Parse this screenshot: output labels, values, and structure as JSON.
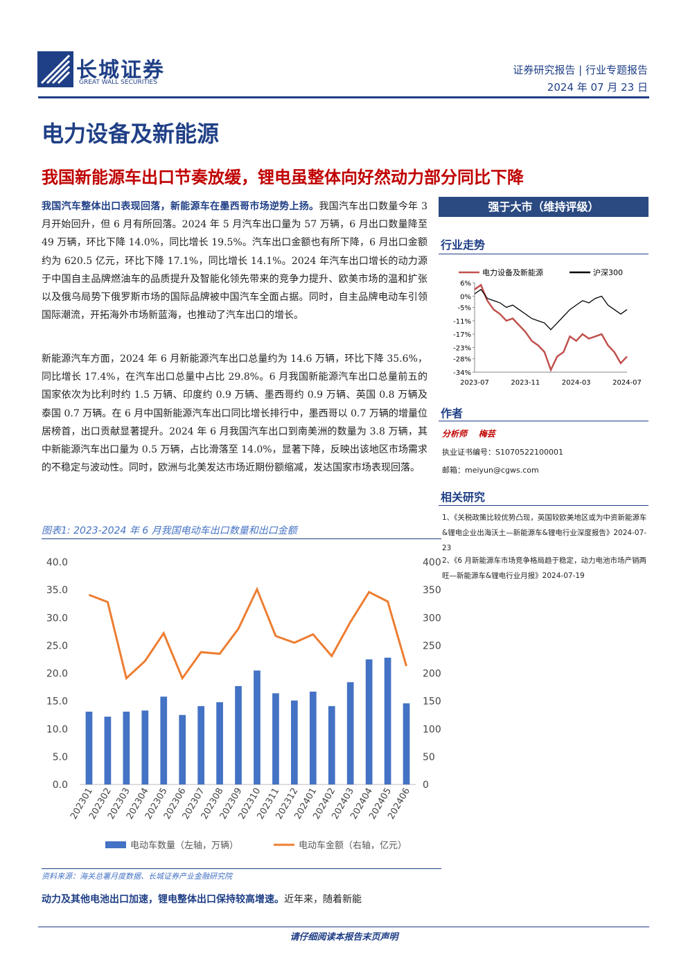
{
  "header": {
    "logo": "长城证券",
    "logo_en": "GREAT WALL SECURITIES",
    "report_type": "证券研究报告",
    "report_subtype": "行业专题报告",
    "date": "2024 年 07 月 23 日"
  },
  "sector": "电力设备及新能源",
  "headline": "我国新能源车出口节奏放缓，锂电虽整体向好然动力部分同比下降",
  "body": {
    "p1_lead": "我国汽车整体出口表现回落，新能源车在墨西哥市场逆势上扬。",
    "p1": "我国汽车出口数量今年 3 月开始回升，但 6 月有所回落。2024 年 5 月汽车出口量为 57 万辆，6 月出口数量降至 49 万辆，环比下降 14.0%，同比增长 19.5%。汽车出口金额也有所下降，6 月出口金额约为 620.5 亿元，环比下降 17.1%，同比增长 14.1%。2024 年汽车出口增长的动力源于中国自主品牌燃油车的品质提升及智能化领先带来的竞争力提升、欧美市场的温和扩张以及俄乌局势下俄罗斯市场的国际品牌被中国汽车全面占据。同时，自主品牌电动车引领国际潮流，开拓海外市场新蓝海，也推动了汽车出口的增长。",
    "p2": "新能源汽车方面，2024 年 6 月新能源汽车出口总量约为 14.6 万辆，环比下降 35.6%，同比增长 17.4%，在汽车出口总量中占比 29.8%。6 月我国新能源汽车出口总量前五的国家依次为比利时约 1.5 万辆、印度约 0.9 万辆、墨西哥约 0.9 万辆、英国 0.8 万辆及泰国 0.7 万辆。在 6 月中国新能源汽车出口同比增长排行中，墨西哥以 0.7 万辆的增量位居榜首，出口贡献显著提升。2024 年 6 月我国汽车出口到南美洲的数量为 3.8 万辆，其中新能源汽车出口量为 0.5 万辆，占比滑落至 14.0%，显著下降，反映出该地区市场需求的不稳定与波动性。同时，欧洲与北美发达市场近期份额缩减，发达国家市场表现回落。",
    "p3_lead": "动力及其他电池出口加速，锂电整体出口保持较高增速。",
    "p3": "近年来，随着新能"
  },
  "sidebar": {
    "rating": "强于大市（维持评级）",
    "trend_title": "行业走势",
    "author_title": "作者",
    "analyst_role": "分析师",
    "analyst_name": "梅芸",
    "cert": "执业证书编号：S1070522100001",
    "email": "邮箱：meiyun@cgws.com",
    "related_title": "相关研究",
    "related": [
      "1、《关税政策比较优势凸现，英国较欧美地区或为中资新能源车&锂电企业出海沃土—新能源车&锂电行业深度报告》2024-07-23",
      "2、《6 月新能源车市场竞争格局趋于稳定，动力电池市场产销两旺—新能源车&锂电行业月报》2024-07-19"
    ]
  },
  "footer": "请仔细阅读本报告末页声明",
  "chart_data": [
    {
      "type": "line",
      "series": [
        {
          "name": "电力设备及新能源",
          "color": "#c0504d",
          "values": [
            3,
            5,
            -2,
            -6,
            -8,
            -11,
            -10,
            -13,
            -16,
            -20,
            -22,
            -25,
            -33,
            -27,
            -25,
            -18,
            -20,
            -17,
            -19,
            -18,
            -17,
            -22,
            -25,
            -30,
            -27
          ]
        },
        {
          "name": "沪深300",
          "color": "#000000",
          "values": [
            1,
            3,
            -1,
            -2,
            -3,
            -5,
            -4,
            -6,
            -8,
            -10,
            -11,
            -12,
            -15,
            -12,
            -9,
            -6,
            -4,
            -2,
            -3,
            -1,
            0,
            -4,
            -6,
            -8,
            -6
          ]
        }
      ],
      "xticks": [
        "2023-07",
        "2023-11",
        "2024-03",
        "2024-07"
      ],
      "ylim": [
        -34,
        6
      ],
      "yticks": [
        {
          "value": 6,
          "label": "6%"
        },
        {
          "value": 0,
          "label": "0%"
        },
        {
          "value": -5,
          "label": "-5%"
        },
        {
          "value": -11,
          "label": "-11%"
        },
        {
          "value": -17,
          "label": "-17%"
        },
        {
          "value": -23,
          "label": "-23%"
        },
        {
          "value": -28,
          "label": "-28%"
        },
        {
          "value": -34,
          "label": "-34%"
        }
      ]
    },
    {
      "type": "bar",
      "title": "图表1: 2023-2024 年 6 月我国电动车出口数量和出口金额",
      "source": "资料来源：海关总署月度数据、长城证券产业金融研究院",
      "categories": [
        "202301",
        "202302",
        "202303",
        "202304",
        "202305",
        "202306",
        "202307",
        "202308",
        "202309",
        "202310",
        "202311",
        "202312",
        "202401",
        "202402",
        "202403",
        "202404",
        "202405",
        "202406"
      ],
      "series": [
        {
          "name": "电动车数量（左轴，万辆）",
          "type": "bar",
          "color": "#4472c4",
          "values": [
            13.1,
            12.2,
            13.1,
            13.3,
            15.8,
            12.5,
            14.1,
            14.8,
            17.7,
            20.5,
            16.4,
            15.1,
            16.7,
            14.1,
            18.4,
            22.5,
            22.8,
            14.6
          ]
        },
        {
          "name": "电动车金额（右轴，亿元）",
          "type": "line",
          "axis": "y2",
          "color": "#ed7d31",
          "values": [
            341,
            328,
            191,
            222,
            272,
            191,
            238,
            235,
            280,
            351,
            267,
            255,
            270,
            231,
            292,
            346,
            329,
            213
          ]
        }
      ],
      "ylim": [
        0,
        40
      ],
      "yticks": [
        {
          "value": 0,
          "label": "0.0"
        },
        {
          "value": 5,
          "label": "5.0"
        },
        {
          "value": 10,
          "label": "10.0"
        },
        {
          "value": 15,
          "label": "15.0"
        },
        {
          "value": 20,
          "label": "20.0"
        },
        {
          "value": 25,
          "label": "25.0"
        },
        {
          "value": 30,
          "label": "30.0"
        },
        {
          "value": 35,
          "label": "35.0"
        },
        {
          "value": 40,
          "label": "40.0"
        }
      ],
      "y2lim": [
        0,
        400
      ],
      "y2ticks": [
        0,
        50,
        100,
        150,
        200,
        250,
        300,
        350,
        400
      ]
    }
  ]
}
